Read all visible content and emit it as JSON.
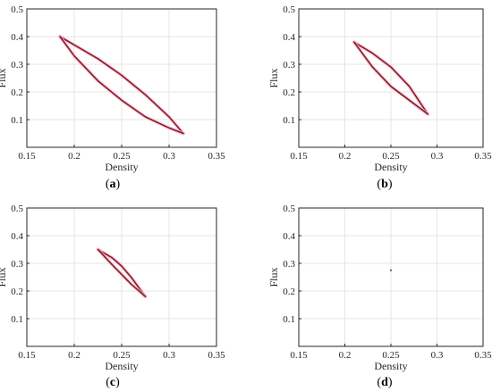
{
  "panel_labels": [
    "(a)",
    "(b)",
    "(c)",
    "(d)"
  ],
  "colors": {
    "curve": "#8b1a1a",
    "halo": "#f4b6d8",
    "grid": "#e6e6e6",
    "axis": "#262626"
  },
  "chart_data": [
    {
      "type": "line",
      "panel": "(a)",
      "xlabel": "Density",
      "ylabel": "Flux",
      "xlim": [
        0.15,
        0.35
      ],
      "ylim": [
        0.0,
        0.5
      ],
      "xticks": [
        "0.15",
        "0.2",
        "0.25",
        "0.3",
        "0.35"
      ],
      "yticks": [
        "0.1",
        "0.2",
        "0.3",
        "0.4",
        "0.5"
      ],
      "grid": true,
      "series": [
        {
          "x": [
            0.185,
            0.2,
            0.225,
            0.25,
            0.275,
            0.3,
            0.315
          ],
          "y": [
            0.4,
            0.37,
            0.32,
            0.26,
            0.19,
            0.11,
            0.05
          ]
        },
        {
          "x": [
            0.185,
            0.2,
            0.225,
            0.25,
            0.275,
            0.3,
            0.315
          ],
          "y": [
            0.4,
            0.33,
            0.24,
            0.17,
            0.11,
            0.07,
            0.05
          ]
        }
      ]
    },
    {
      "type": "line",
      "panel": "(b)",
      "xlabel": "Density",
      "ylabel": "Flux",
      "xlim": [
        0.15,
        0.35
      ],
      "ylim": [
        0.0,
        0.5
      ],
      "xticks": [
        "0.15",
        "0.2",
        "0.25",
        "0.3",
        "0.35"
      ],
      "yticks": [
        "0.1",
        "0.2",
        "0.3",
        "0.4",
        "0.5"
      ],
      "grid": true,
      "series": [
        {
          "x": [
            0.21,
            0.23,
            0.25,
            0.27,
            0.29
          ],
          "y": [
            0.38,
            0.34,
            0.29,
            0.22,
            0.12
          ]
        },
        {
          "x": [
            0.21,
            0.23,
            0.25,
            0.27,
            0.29
          ],
          "y": [
            0.38,
            0.29,
            0.22,
            0.17,
            0.12
          ]
        }
      ]
    },
    {
      "type": "line",
      "panel": "(c)",
      "xlabel": "Density",
      "ylabel": "Flux",
      "xlim": [
        0.15,
        0.35
      ],
      "ylim": [
        0.0,
        0.5
      ],
      "xticks": [
        "0.15",
        "0.2",
        "0.25",
        "0.3",
        "0.35"
      ],
      "yticks": [
        "0.1",
        "0.2",
        "0.3",
        "0.4",
        "0.5"
      ],
      "grid": true,
      "series": [
        {
          "x": [
            0.225,
            0.24,
            0.25,
            0.26,
            0.275
          ],
          "y": [
            0.35,
            0.32,
            0.29,
            0.25,
            0.18
          ]
        },
        {
          "x": [
            0.225,
            0.24,
            0.25,
            0.26,
            0.275
          ],
          "y": [
            0.35,
            0.295,
            0.26,
            0.225,
            0.18
          ]
        }
      ]
    },
    {
      "type": "line",
      "panel": "(d)",
      "xlabel": "Density",
      "ylabel": "Flux",
      "xlim": [
        0.15,
        0.35
      ],
      "ylim": [
        0.0,
        0.5
      ],
      "xticks": [
        "0.15",
        "0.2",
        "0.25",
        "0.3",
        "0.35"
      ],
      "yticks": [
        "0.1",
        "0.2",
        "0.3",
        "0.4",
        "0.5"
      ],
      "grid": true,
      "series": [
        {
          "x": [
            0.25
          ],
          "y": [
            0.275
          ]
        }
      ]
    }
  ]
}
